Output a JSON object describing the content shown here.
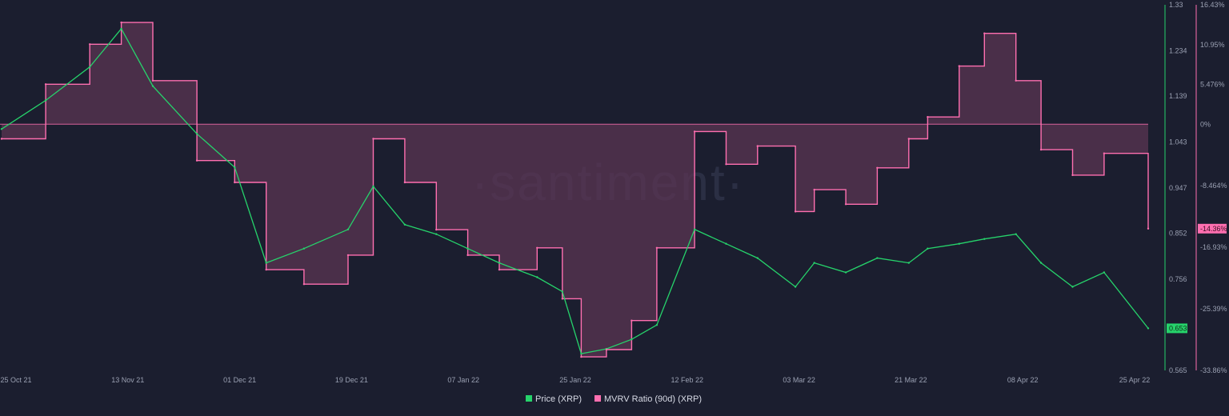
{
  "watermark": "·santiment·",
  "colors": {
    "background": "#1b1e2f",
    "price": "#26d36b",
    "mvrv": "#ff6fb0",
    "mvrv_fill": "#5b3553"
  },
  "chart_data": {
    "type": "line",
    "x": [
      "2021-10-25",
      "2021-11-01",
      "2021-11-08",
      "2021-11-13",
      "2021-11-18",
      "2021-11-25",
      "2021-12-01",
      "2021-12-06",
      "2021-12-12",
      "2021-12-19",
      "2021-12-23",
      "2021-12-28",
      "2022-01-02",
      "2022-01-07",
      "2022-01-12",
      "2022-01-18",
      "2022-01-22",
      "2022-01-25",
      "2022-01-29",
      "2022-02-02",
      "2022-02-06",
      "2022-02-12",
      "2022-02-17",
      "2022-02-22",
      "2022-02-28",
      "2022-03-03",
      "2022-03-08",
      "2022-03-13",
      "2022-03-18",
      "2022-03-21",
      "2022-03-26",
      "2022-03-30",
      "2022-04-04",
      "2022-04-08",
      "2022-04-13",
      "2022-04-18",
      "2022-04-25"
    ],
    "x_ticks": [
      "25 Oct 21",
      "13 Nov 21",
      "01 Dec 21",
      "19 Dec 21",
      "07 Jan 22",
      "25 Jan 22",
      "12 Feb 22",
      "03 Mar 22",
      "21 Mar 22",
      "08 Apr 22",
      "25 Apr 22"
    ],
    "series": [
      {
        "name": "Price (XRP)",
        "axis": "left",
        "values": [
          1.07,
          1.13,
          1.2,
          1.28,
          1.16,
          1.06,
          0.99,
          0.79,
          0.82,
          0.86,
          0.95,
          0.87,
          0.85,
          0.82,
          0.79,
          0.76,
          0.73,
          0.6,
          0.61,
          0.63,
          0.66,
          0.86,
          0.83,
          0.8,
          0.74,
          0.79,
          0.77,
          0.8,
          0.79,
          0.82,
          0.83,
          0.84,
          0.85,
          0.79,
          0.74,
          0.77,
          0.653
        ]
      },
      {
        "name": "MVRV Ratio (90d) (XRP)",
        "axis": "right",
        "values": [
          -2.0,
          5.5,
          11.0,
          14.0,
          6.0,
          -5.0,
          -8.0,
          -20.0,
          -22.0,
          -18.0,
          -2.0,
          -8.0,
          -14.5,
          -18.0,
          -20.0,
          -17.0,
          -24.0,
          -32.0,
          -31.0,
          -27.0,
          -17.0,
          -1.0,
          -5.5,
          -3.0,
          -12.0,
          -9.0,
          -11.0,
          -6.0,
          -2.0,
          1.0,
          8.0,
          12.5,
          6.0,
          -3.5,
          -7.0,
          -4.0,
          -14.36
        ]
      }
    ],
    "y_left": {
      "ticks": [
        "1.33",
        "1.234",
        "1.139",
        "1.043",
        "0.947",
        "0.852",
        "0.756",
        "0.565"
      ],
      "range": [
        0.565,
        1.33
      ],
      "last_label": "0.653"
    },
    "y_right": {
      "ticks": [
        "16.43%",
        "10.95%",
        "5.476%",
        "0%",
        "-8.464%",
        "-16.93%",
        "-25.39%",
        "-33.86%"
      ],
      "range": [
        -33.86,
        16.43
      ],
      "last_label": "-14.36%"
    },
    "legend_position": "bottom-center",
    "grid": false
  }
}
